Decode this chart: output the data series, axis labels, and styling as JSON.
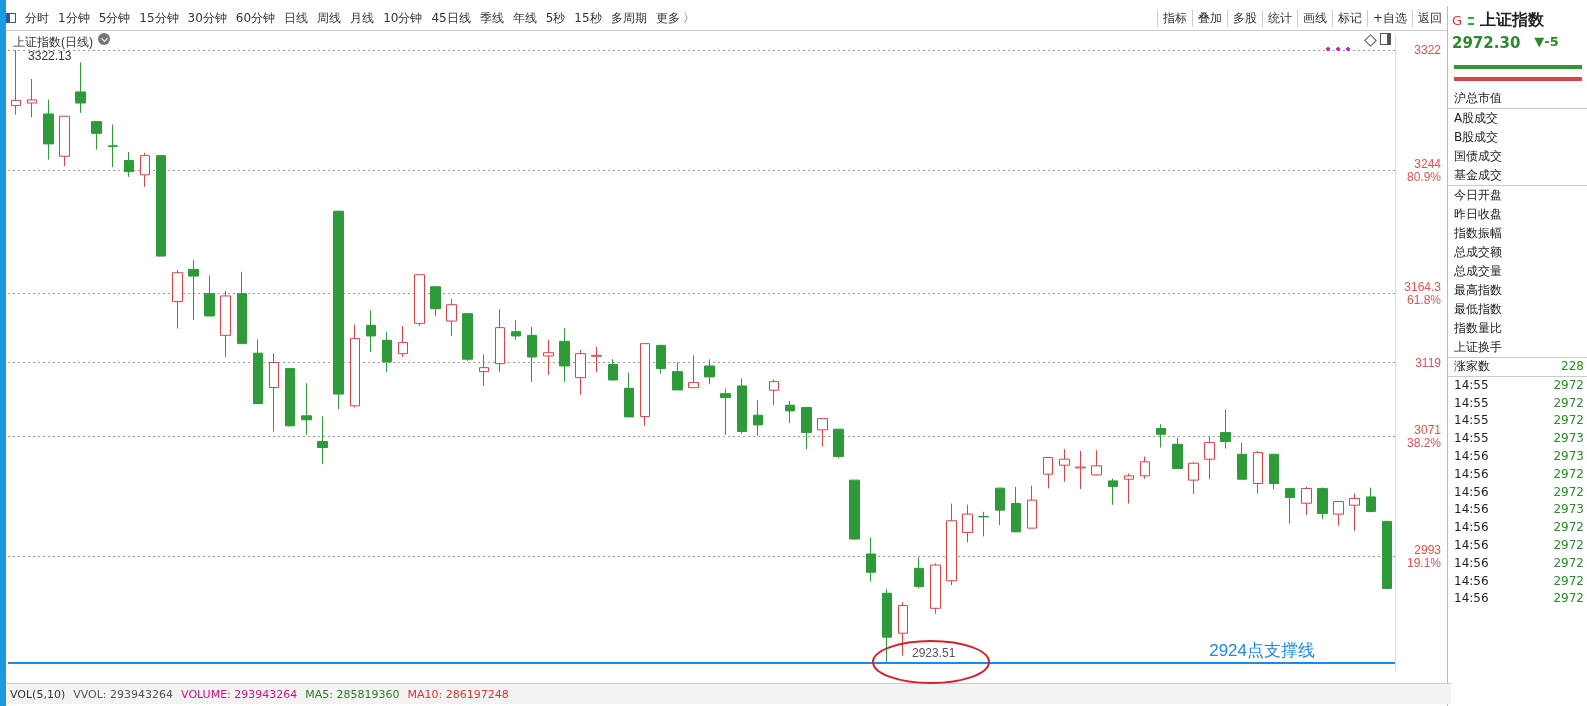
{
  "chart_data": [
    {
      "type": "candlestick",
      "title": "上证指数(日线)",
      "categories": [
        null,
        null,
        null,
        null,
        null,
        null,
        null,
        null,
        null,
        null,
        null,
        null,
        null,
        null,
        null,
        null,
        null,
        null,
        null,
        null,
        null,
        null,
        null,
        null,
        null,
        null,
        null,
        null,
        null,
        null,
        null,
        null,
        null,
        null,
        null,
        null,
        null,
        null,
        null,
        null,
        null,
        null,
        null,
        null,
        null,
        null,
        null,
        null,
        null,
        null,
        null,
        null,
        null,
        null,
        null,
        null,
        null,
        null,
        null,
        null,
        null,
        null,
        null,
        null,
        null,
        null,
        null,
        null,
        null,
        null,
        null,
        null,
        null,
        null,
        null,
        null,
        null,
        null,
        null,
        null,
        null,
        null,
        null,
        null,
        null,
        null
      ],
      "ohlc": [
        [
          3286.1,
          3322.13,
          3280.3,
          3289.5
        ],
        [
          3287.8,
          3303.4,
          3278.5,
          3289.8
        ],
        [
          3280.7,
          3290.0,
          3251.0,
          3261.2
        ],
        [
          3253.2,
          3279.2,
          3246.7,
          3279.2
        ],
        [
          3295.0,
          3314.2,
          3281.4,
          3287.8
        ],
        [
          3275.7,
          3275.7,
          3257.5,
          3268.1
        ],
        [
          3260.0,
          3273.8,
          3246.1,
          3259.5
        ],
        [
          3250.4,
          3256.0,
          3239.8,
          3243.3
        ],
        [
          3241.1,
          3255.4,
          3233.3,
          3253.6
        ],
        [
          3253.6,
          3253.6,
          3188.3,
          3188.3
        ],
        [
          3158.7,
          3179.2,
          3141.2,
          3177.5
        ],
        [
          3179.7,
          3185.7,
          3146.8,
          3175.3
        ],
        [
          3163.9,
          3175.8,
          3149.4,
          3149.4
        ],
        [
          3136.8,
          3165.6,
          3122.8,
          3162.4
        ],
        [
          3163.9,
          3178.1,
          3131.4,
          3131.4
        ],
        [
          3125.2,
          3134.2,
          3092.5,
          3092.5
        ],
        [
          3102.9,
          3125.2,
          3074.3,
          3119.1
        ],
        [
          3115.2,
          3115.2,
          3077.6,
          3078.0
        ],
        [
          3084.5,
          3105.7,
          3072.2,
          3081.9
        ],
        [
          3067.8,
          3084.1,
          3053.1,
          3063.9
        ],
        [
          3217.5,
          3217.5,
          3088.8,
          3098.6
        ],
        [
          3091.0,
          3143.8,
          3089.9,
          3134.7
        ],
        [
          3143.3,
          3153.1,
          3126.0,
          3136.4
        ],
        [
          3133.6,
          3139.2,
          3113.0,
          3119.5
        ],
        [
          3124.9,
          3142.9,
          3122.8,
          3132.1
        ],
        [
          3144.6,
          3176.2,
          3142.9,
          3176.2
        ],
        [
          3168.4,
          3168.4,
          3149.4,
          3154.1
        ],
        [
          3146.1,
          3160.6,
          3136.4,
          3156.7
        ],
        [
          3150.9,
          3150.9,
          3120.2,
          3121.3
        ],
        [
          3113.2,
          3124.5,
          3103.9,
          3115.8
        ],
        [
          3118.4,
          3153.7,
          3113.0,
          3141.8
        ],
        [
          3139.2,
          3146.5,
          3133.8,
          3136.4
        ],
        [
          3136.8,
          3142.4,
          3106.5,
          3122.7
        ],
        [
          3123.4,
          3133.8,
          3111.1,
          3125.5
        ],
        [
          3132.9,
          3141.3,
          3106.5,
          3116.9
        ],
        [
          3109.3,
          3127.3,
          3098.1,
          3124.9
        ],
        [
          3123.2,
          3129.4,
          3113.0,
          3123.8
        ],
        [
          3117.8,
          3121.2,
          3107.8,
          3107.8
        ],
        [
          3102.4,
          3112.6,
          3083.8,
          3083.8
        ],
        [
          3084.0,
          3131.4,
          3078.0,
          3131.4
        ],
        [
          3130.3,
          3130.3,
          3111.9,
          3115.2
        ],
        [
          3113.2,
          3119.1,
          3101.3,
          3101.3
        ],
        [
          3102.8,
          3123.8,
          3102.8,
          3106.1
        ],
        [
          3116.9,
          3121.2,
          3105.0,
          3109.8
        ],
        [
          3098.9,
          3102.2,
          3072.1,
          3096.3
        ],
        [
          3103.9,
          3108.9,
          3073.0,
          3074.3
        ],
        [
          3084.9,
          3094.6,
          3071.5,
          3078.6
        ],
        [
          3101.1,
          3108.2,
          3091.6,
          3106.7
        ],
        [
          3091.4,
          3094.2,
          3079.7,
          3087.7
        ],
        [
          3089.9,
          3089.9,
          3062.8,
          3073.6
        ],
        [
          3075.4,
          3082.7,
          3064.5,
          3082.7
        ],
        [
          3075.8,
          3075.8,
          3056.8,
          3058.1
        ],
        [
          3042.7,
          3042.7,
          3004.0,
          3004.4
        ],
        [
          2994.7,
          3005.5,
          2976.9,
          2982.8
        ],
        [
          2969.2,
          2972.0,
          2923.51,
          2940.6
        ],
        [
          2943.2,
          2963.3,
          2928.7,
          2961.2
        ],
        [
          2985.4,
          2992.5,
          2972.4,
          2973.5
        ],
        [
          2959.4,
          2988.6,
          2955.8,
          2987.5
        ],
        [
          2977.3,
          3027.5,
          2974.5,
          3016.3
        ],
        [
          3008.7,
          3026.7,
          3002.2,
          3020.6
        ],
        [
          3019.1,
          3022.1,
          3006.1,
          3018.8
        ],
        [
          3037.5,
          3037.5,
          3013.5,
          3023.2
        ],
        [
          3027.5,
          3038.3,
          3009.1,
          3009.1
        ],
        [
          3011.5,
          3039.0,
          3011.5,
          3029.7
        ],
        [
          3046.6,
          3057.4,
          3037.3,
          3057.4
        ],
        [
          3052.4,
          3062.8,
          3041.6,
          3056.3
        ],
        [
          3050.6,
          3061.7,
          3036.8,
          3051.2
        ],
        [
          3046.1,
          3062.1,
          3045.9,
          3052.0
        ],
        [
          3042.2,
          3043.7,
          3026.7,
          3038.6
        ],
        [
          3043.3,
          3047.0,
          3027.5,
          3045.5
        ],
        [
          3045.5,
          3058.0,
          3043.7,
          3054.6
        ],
        [
          3076.2,
          3079.0,
          3063.9,
          3072.5
        ],
        [
          3066.0,
          3070.3,
          3050.2,
          3050.2
        ],
        [
          3042.7,
          3054.6,
          3033.6,
          3053.7
        ],
        [
          3056.3,
          3071.0,
          3043.3,
          3067.1
        ],
        [
          3073.6,
          3088.7,
          3063.2,
          3067.8
        ],
        [
          3059.5,
          3067.1,
          3043.3,
          3043.3
        ],
        [
          3040.5,
          3061.7,
          3034.0,
          3060.6
        ],
        [
          3059.5,
          3059.5,
          3036.8,
          3040.5
        ],
        [
          3037.3,
          3037.3,
          3014.5,
          3031.4
        ],
        [
          3027.7,
          3038.3,
          3020.0,
          3037.3
        ],
        [
          3037.3,
          3037.9,
          3017.4,
          3021.0
        ],
        [
          3020.6,
          3028.8,
          3013.0,
          3028.8
        ],
        [
          3026.4,
          3034.0,
          3009.8,
          3030.8
        ],
        [
          3031.8,
          3037.9,
          3021.7,
          3022.3
        ],
        [
          3015.9,
          3015.9,
          2972.3,
          2972.3
        ]
      ],
      "ylim": [
        2918,
        3332
      ],
      "yticks": [
        3322,
        {
          "value": 3244,
          "label": "3244\n80.9%"
        },
        {
          "value": 3164.3,
          "label": "3164.3\n61.8%"
        },
        3119,
        {
          "value": 3071,
          "label": "3071\n38.2%"
        },
        {
          "value": 2993,
          "label": "2993\n19.1%"
        }
      ],
      "grid": "y",
      "tick_labels": "y",
      "ref_lines": [
        {
          "axis": "y",
          "value": 2924,
          "label": "2924点支撑线",
          "color": "#1e88e5"
        }
      ],
      "annotations": [
        "3322.13",
        "2923.51",
        "VOL(5,10)",
        "VVOL: 293943264",
        "VOLUME: 293943264",
        "MA5: 285819360",
        "MA10: 286197248"
      ]
    },
    {
      "type": "other",
      "annotations": [
        "分时",
        "1分钟",
        "5分钟",
        "15分钟",
        "30分钟",
        "60分钟",
        "日线",
        "周线",
        "月线",
        "10分钟",
        "45日线",
        "季线",
        "年线",
        "5秒",
        "15秒",
        "多周期",
        "更多 〉"
      ]
    },
    {
      "type": "other",
      "annotations": [
        "指标",
        "叠加",
        "多股",
        "统计",
        "画线",
        "标记",
        "+自选",
        "返回"
      ]
    },
    {
      "type": "other",
      "title": "上证指数",
      "subtitle": "2972.30",
      "annotations": [
        "G",
        "▼-5",
        "沪总市值",
        "A股成交",
        "B股成交",
        "国债成交",
        "基金成交",
        "今日开盘",
        "昨日收盘",
        "指数振幅",
        "总成交额",
        "总成交量",
        "最高指数",
        "最低指数",
        "指数量比",
        "上证换手",
        "涨家数 228",
        "14:55 2972",
        "14:55 2972",
        "14:55 2972",
        "14:55 2973",
        "14:56 2973",
        "14:56 2972",
        "14:56 2972",
        "14:56 2973",
        "14:56 2972",
        "14:56 2972",
        "14:56 2972",
        "14:56 2972",
        "14:56 2972"
      ]
    }
  ]
}
